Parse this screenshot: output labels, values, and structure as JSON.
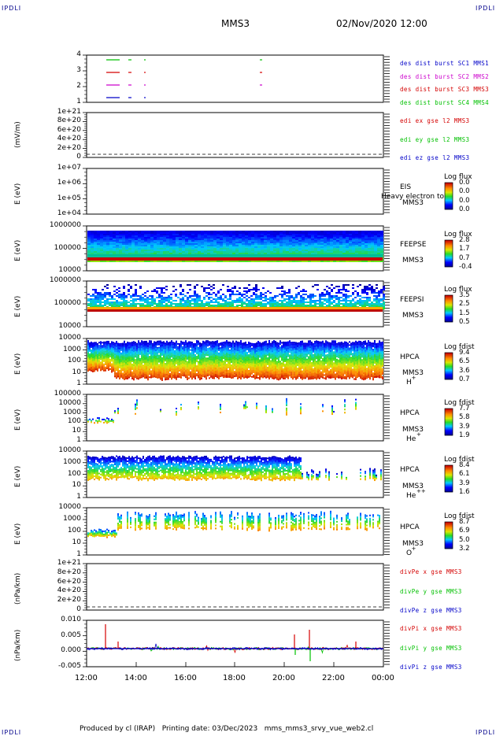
{
  "header": {
    "corner_left": "IPDLI",
    "corner_right": "IPDLI",
    "title": "MMS3",
    "date": "02/Nov/2020 12:00"
  },
  "footer": {
    "text": "Produced by cl (IRAP)   Printing date: 03/Dec/2023   mms_mms3_srvy_vue_web2.cl",
    "corner_left": "IPDLI",
    "corner_right": "IPDLI"
  },
  "x_axis": {
    "ticks": [
      "12:00",
      "14:00",
      "16:00",
      "18:00",
      "20:00",
      "22:00",
      "00:00"
    ]
  },
  "colors": {
    "red": "#d40000",
    "magenta": "#cc00cc",
    "green": "#00c000",
    "blue": "#0000c8"
  },
  "chart_data": [
    {
      "type": "line",
      "name": "burst",
      "yticks": [
        "4",
        "3",
        "2",
        "1"
      ],
      "legend": [
        {
          "label": "des dist burst SC1 MMS1",
          "color": "#0000c8"
        },
        {
          "label": "des dist burst SC2 MMS2",
          "color": "#cc00cc"
        },
        {
          "label": "des dist burst SC3 MMS3",
          "color": "#d40000"
        },
        {
          "label": "des dist burst SC4 MMS4",
          "color": "#00c000"
        }
      ]
    },
    {
      "type": "line",
      "name": "edi",
      "ylabel": "(mV/m)",
      "yticks": [
        "1e+21",
        "8e+20",
        "6e+20",
        "4e+20",
        "2e+20",
        "0"
      ],
      "legend": [
        {
          "label": "edi ex gse l2 MMS3",
          "color": "#d40000"
        },
        {
          "label": "edi ey gse l2 MMS3",
          "color": "#00c000"
        },
        {
          "label": "edi ez gse l2 MMS3",
          "color": "#0000c8"
        }
      ]
    },
    {
      "type": "heatmap",
      "name": "eis",
      "ylabel": "E (eV)",
      "yticks": [
        "1e+07",
        "1e+06",
        "1e+05",
        "1e+04"
      ],
      "side": [
        "EIS",
        "MMS3"
      ],
      "overlay": "Heavy electron to",
      "cbar_title": "Log flux",
      "cbar_ticks": [
        "0.0",
        "0.0",
        "0.0",
        "0.0"
      ]
    },
    {
      "type": "heatmap",
      "name": "feepse",
      "ylabel": "E (eV)",
      "yticks": [
        "1000000",
        "100000",
        "10000"
      ],
      "side": [
        "FEEPSE",
        "MMS3"
      ],
      "cbar_title": "Log flux",
      "cbar_ticks": [
        "2.8",
        "1.7",
        "0.7",
        "-0.4"
      ]
    },
    {
      "type": "heatmap",
      "name": "feepsi",
      "ylabel": "E (eV)",
      "yticks": [
        "1000000",
        "100000",
        "10000"
      ],
      "side": [
        "FEEPSI",
        "MMS3"
      ],
      "cbar_title": "Log flux",
      "cbar_ticks": [
        "3.5",
        "2.5",
        "1.5",
        "0.5"
      ]
    },
    {
      "type": "heatmap",
      "name": "hpca-h",
      "ylabel": "E (eV)",
      "yticks": [
        "10000",
        "1000",
        "100",
        "10",
        "1"
      ],
      "side": [
        "HPCA",
        "MMS3"
      ],
      "species": "H",
      "charge": "+",
      "cbar_title": "Log fdist",
      "cbar_ticks": [
        "9.4",
        "6.5",
        "3.6",
        "0.7"
      ]
    },
    {
      "type": "heatmap",
      "name": "hpca-he",
      "ylabel": "E (eV)",
      "yticks": [
        "100000",
        "10000",
        "1000",
        "100",
        "10",
        "1"
      ],
      "side": [
        "HPCA",
        "MMS3"
      ],
      "species": "He",
      "charge": "+",
      "cbar_title": "Log fdist",
      "cbar_ticks": [
        "7.7",
        "5.8",
        "3.9",
        "1.9"
      ]
    },
    {
      "type": "heatmap",
      "name": "hpca-he2",
      "ylabel": "E (eV)",
      "yticks": [
        "10000",
        "1000",
        "100",
        "10",
        "1"
      ],
      "side": [
        "HPCA",
        "MMS3"
      ],
      "species": "He",
      "charge": "++",
      "cbar_title": "Log fdist",
      "cbar_ticks": [
        "8.4",
        "6.1",
        "3.9",
        "1.6"
      ]
    },
    {
      "type": "heatmap",
      "name": "hpca-o",
      "ylabel": "E (eV)",
      "yticks": [
        "10000",
        "1000",
        "100",
        "10",
        "1"
      ],
      "side": [
        "HPCA",
        "MMS3"
      ],
      "species": "O",
      "charge": "+",
      "cbar_title": "Log fdist",
      "cbar_ticks": [
        "8.7",
        "6.9",
        "5.0",
        "3.2"
      ]
    },
    {
      "type": "line",
      "name": "divpe",
      "ylabel": "(nPa/km)",
      "yticks": [
        "1e+21",
        "8e+20",
        "6e+20",
        "4e+20",
        "2e+20",
        "0"
      ],
      "legend": [
        {
          "label": "divPe x gse MMS3",
          "color": "#d40000"
        },
        {
          "label": "divPe y gse MMS3",
          "color": "#00c000"
        },
        {
          "label": "divPe z gse MMS3",
          "color": "#0000c8"
        }
      ]
    },
    {
      "type": "line",
      "name": "divpi",
      "ylabel": "(nPa/km)",
      "yticks": [
        "0.010",
        "0.005",
        "0.000",
        "-0.005"
      ],
      "legend": [
        {
          "label": "divPi x gse MMS3",
          "color": "#d40000"
        },
        {
          "label": "divPi y gse MMS3",
          "color": "#00c000"
        },
        {
          "label": "divPi z gse MMS3",
          "color": "#0000c8"
        }
      ]
    }
  ]
}
